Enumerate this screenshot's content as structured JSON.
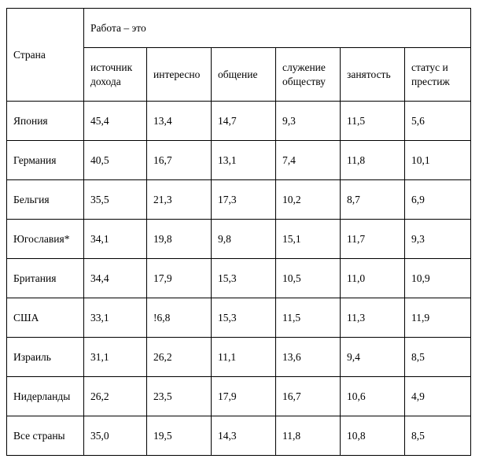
{
  "table": {
    "country_header": "Страна",
    "group_header": "Работа – это",
    "columns": [
      [
        "источник",
        "дохода"
      ],
      [
        "интересно"
      ],
      [
        "общение"
      ],
      [
        "служение",
        "обществу"
      ],
      [
        "занятость"
      ],
      [
        "статус и",
        "престиж"
      ]
    ],
    "rows": [
      {
        "country": "Япония",
        "values": [
          "45,4",
          "13,4",
          "14,7",
          "9,3",
          "11,5",
          "5,6"
        ]
      },
      {
        "country": "Германия",
        "values": [
          "40,5",
          "16,7",
          "13,1",
          "7,4",
          "11,8",
          "10,1"
        ]
      },
      {
        "country": "Бельгия",
        "values": [
          "35,5",
          "21,3",
          "17,3",
          "10,2",
          "8,7",
          "6,9"
        ]
      },
      {
        "country": "Югославия*",
        "values": [
          "34,1",
          "19,8",
          "9,8",
          "15,1",
          "11,7",
          "9,3"
        ]
      },
      {
        "country": "Британия",
        "values": [
          "34,4",
          "17,9",
          "15,3",
          "10,5",
          "11,0",
          "10,9"
        ]
      },
      {
        "country": "США",
        "values": [
          "33,1",
          "!6,8",
          "15,3",
          "11,5",
          "11,3",
          "11,9"
        ]
      },
      {
        "country": "Израиль",
        "values": [
          "31,1",
          "26,2",
          "11,1",
          "13,6",
          "9,4",
          "8,5"
        ]
      },
      {
        "country": "Нидерланды",
        "values": [
          "26,2",
          "23,5",
          "17,9",
          "16,7",
          "10,6",
          "4,9"
        ]
      },
      {
        "country": "Все страны",
        "values": [
          "35,0",
          "19,5",
          "14,3",
          "11,8",
          "10,8",
          "8,5"
        ]
      }
    ]
  }
}
